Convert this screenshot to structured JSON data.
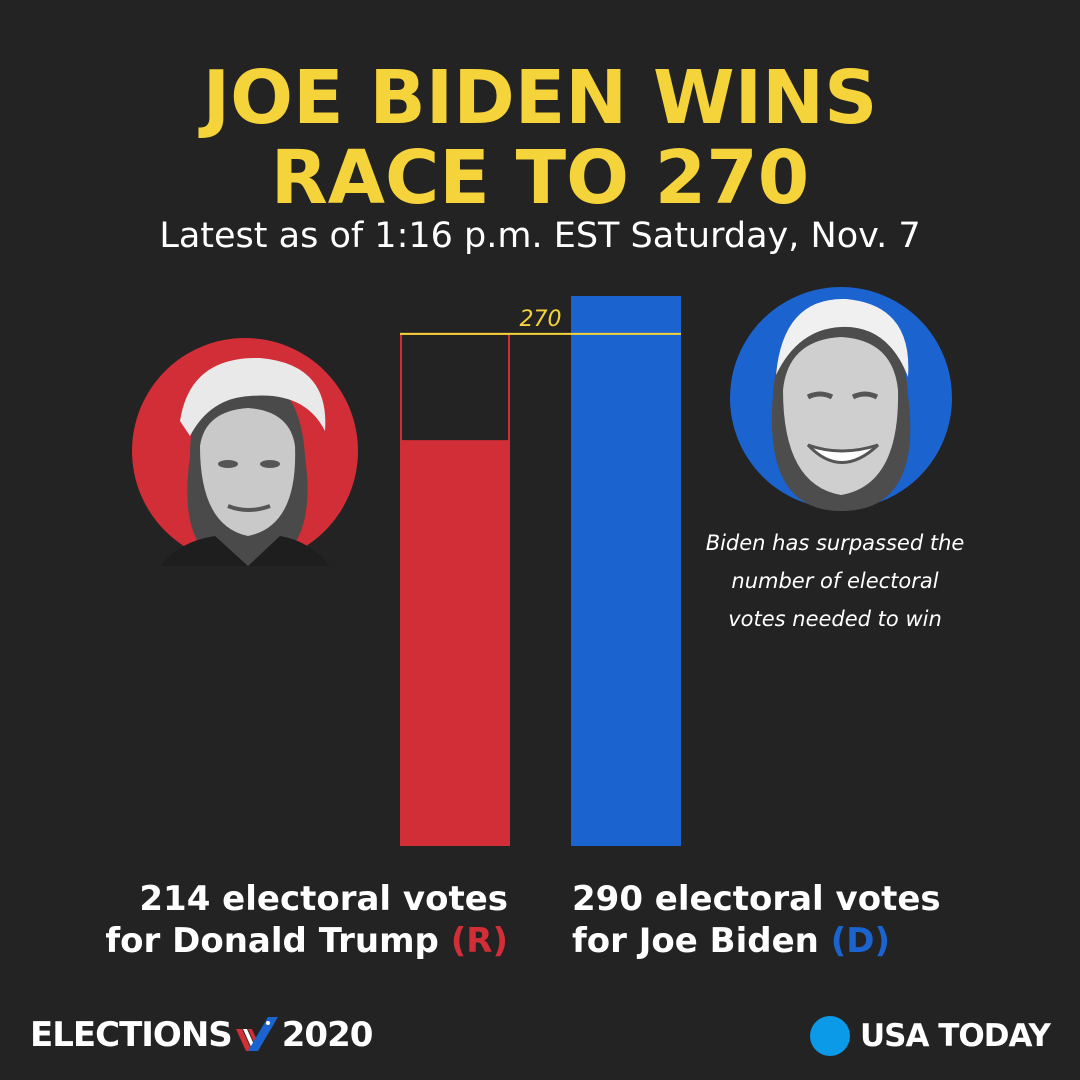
{
  "headline": {
    "line1": "JOE BIDEN WINS",
    "line2": "RACE TO 270",
    "subtitle": "Latest as of 1:16 p.m. EST Saturday, Nov. 7"
  },
  "chart_data": {
    "type": "bar",
    "categories": [
      "Donald Trump (R)",
      "Joe Biden (D)"
    ],
    "values": [
      214,
      290
    ],
    "threshold": {
      "value": 270,
      "label": "270"
    },
    "ylim": [
      0,
      290
    ],
    "grid": false,
    "colors": {
      "republican": "#d12e37",
      "democrat": "#1b63cf",
      "threshold": "#f5d33a"
    }
  },
  "candidates": {
    "trump": {
      "votes": "214",
      "line1": "214 electoral votes",
      "line2_prefix": "for Donald Trump",
      "party": "(R)",
      "portrait_color": "#d12e37"
    },
    "biden": {
      "votes": "290",
      "line1": "290 electoral votes",
      "line2_prefix": "for Joe Biden",
      "party": "(D)",
      "portrait_color": "#1b63cf"
    }
  },
  "annotation": {
    "line1": "Biden has surpassed the",
    "line2": "number of electoral",
    "line3": "votes needed to win"
  },
  "footer": {
    "elections_label": "ELECTIONS",
    "year": "2020",
    "brand": "USA TODAY",
    "brand_color": "#0a9ae7"
  },
  "colors": {
    "background": "#232323",
    "headline": "#f5d33a",
    "text": "#ffffff"
  }
}
